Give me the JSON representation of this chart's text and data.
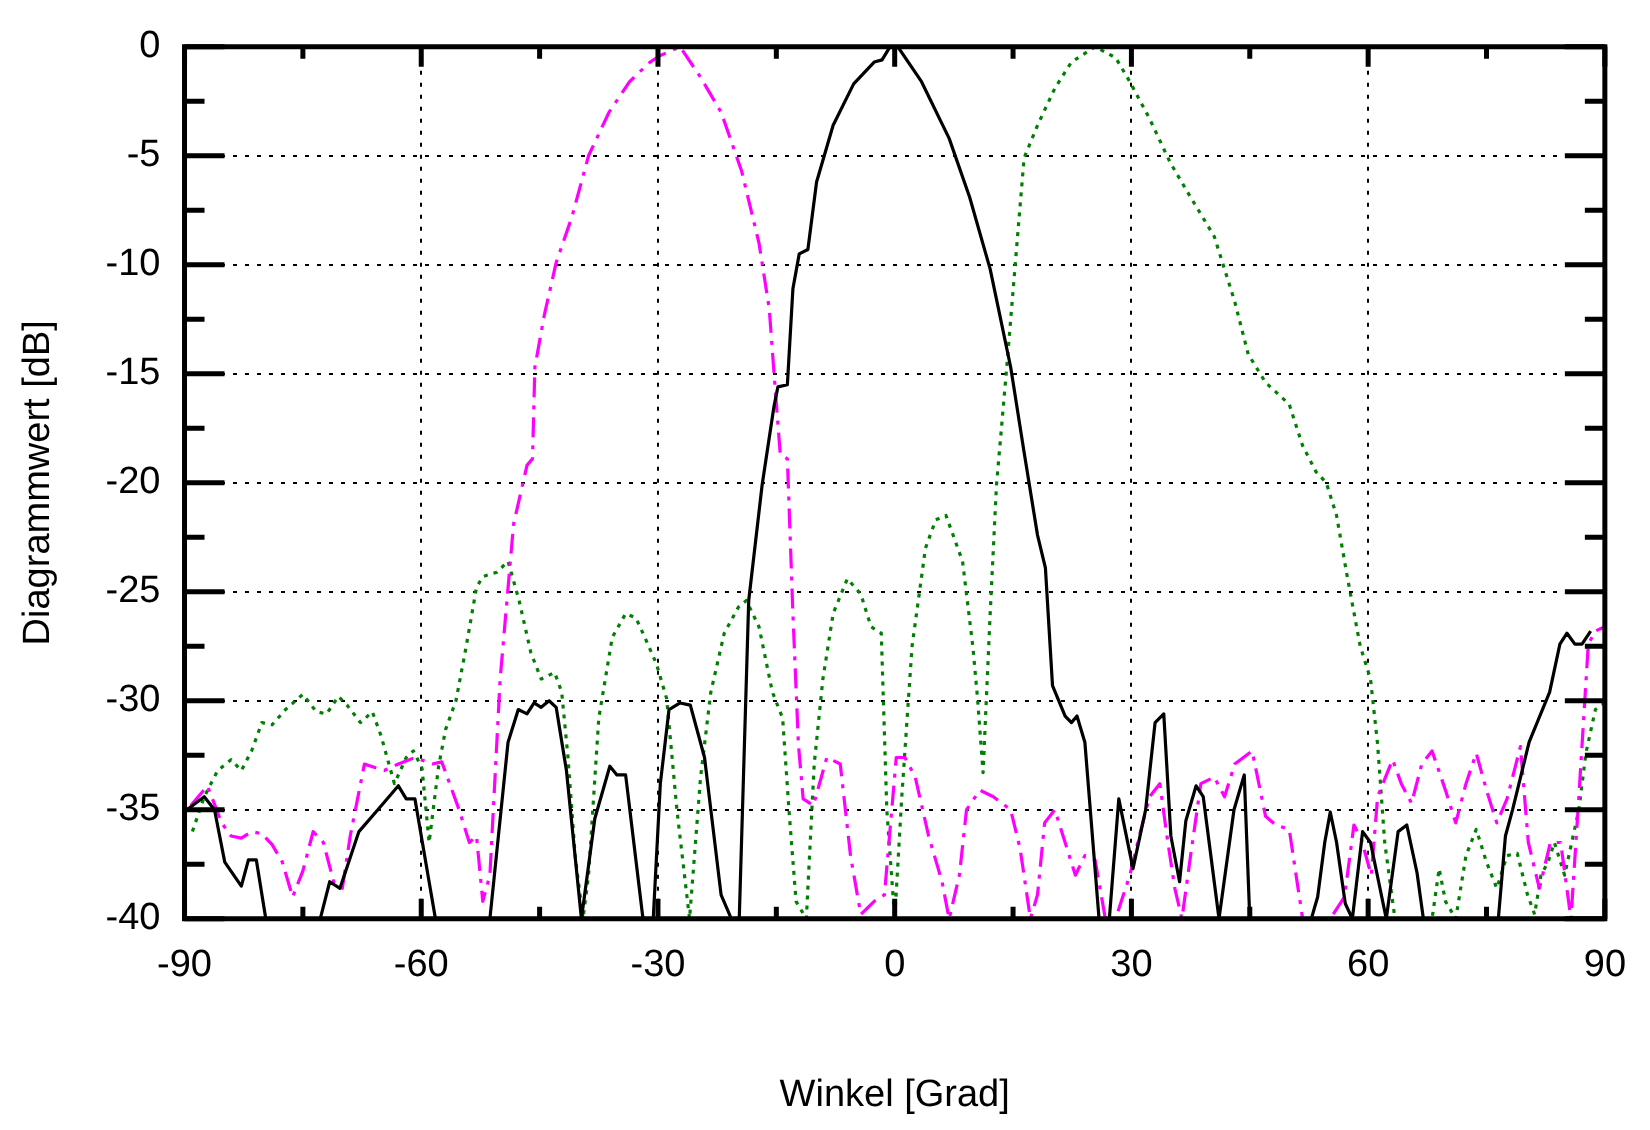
{
  "chart_data": {
    "type": "line",
    "xlabel": "Winkel [Grad]",
    "ylabel": "Diagrammwert [dB]",
    "xlim": [
      -90,
      90
    ],
    "ylim": [
      -40,
      0
    ],
    "xticks": [
      -90,
      {
        "value": -75,
        "label": null
      },
      -60,
      {
        "value": -45,
        "label": null
      },
      -30,
      {
        "value": -15,
        "label": null
      },
      0,
      {
        "value": 15,
        "label": null
      },
      30,
      {
        "value": 45,
        "label": null
      },
      60,
      {
        "value": 75,
        "label": null
      },
      90
    ],
    "yticks": [
      -40,
      {
        "value": -37.5,
        "label": null
      },
      -35,
      {
        "value": -32.5,
        "label": null
      },
      -30,
      {
        "value": -27.5,
        "label": null
      },
      -25,
      {
        "value": -22.5,
        "label": null
      },
      -20,
      {
        "value": -17.5,
        "label": null
      },
      -15,
      {
        "value": -12.5,
        "label": null
      },
      -10,
      {
        "value": -7.5,
        "label": null
      },
      -5,
      {
        "value": -2.5,
        "label": null
      },
      0
    ],
    "grid": true,
    "marker": "none",
    "series": [
      {
        "color": "#000000",
        "line_style": "solid",
        "x": [
          -89.7,
          -87.5,
          -86.2,
          -84.9,
          -82.8,
          -81.9,
          -80.9,
          -79.7,
          -72.8,
          -71.6,
          -70.3,
          -67.9,
          -65.5,
          -62.9,
          -61.9,
          -60.8,
          -58.2,
          -51.3,
          -49,
          -47.7,
          -46.6,
          -45.7,
          -44.8,
          -43.8,
          -42.9,
          -41.6,
          -39.7,
          -38,
          -36.1,
          -35.2,
          -34.1,
          -31.9,
          -30.6,
          -29.7,
          -28.6,
          -27.2,
          -25.9,
          -24.1,
          -22,
          -20.7,
          -19.7,
          -18.5,
          -16.8,
          -15.3,
          -14.8,
          -13.6,
          -12.9,
          -12.1,
          -11,
          -9.9,
          -7.8,
          -5.2,
          -2.6,
          -1.6,
          -0.6,
          0.4,
          3.4,
          6.9,
          9.5,
          12.1,
          14.7,
          16.4,
          18.1,
          19.1,
          20,
          21.6,
          22.4,
          23.1,
          24.1,
          25.9,
          27.2,
          28.4,
          30.2,
          31.8,
          33,
          34.1,
          35,
          36.1,
          36.9,
          38.2,
          39.1,
          41.1,
          43,
          44.3,
          45,
          52.8,
          53.6,
          54.5,
          55.2,
          56,
          57.1,
          58,
          59.3,
          60.3,
          62.3,
          63.8,
          64.9,
          66.2,
          67,
          76.5,
          77.4,
          78.3,
          80.4,
          83,
          84.3,
          85.2,
          86.2,
          87.1,
          88.2
        ],
        "values": [
          -35,
          -34.4,
          -35,
          -37.4,
          -38.5,
          -37.3,
          -37.3,
          -40,
          -40,
          -38.3,
          -38.6,
          -36,
          -35,
          -33.9,
          -34.5,
          -34.5,
          -40,
          -40,
          -31.9,
          -30.4,
          -30.6,
          -30.1,
          -30.3,
          -30,
          -30.3,
          -33.2,
          -40,
          -35.4,
          -33,
          -33.4,
          -33.4,
          -40,
          -40,
          -33.8,
          -30.4,
          -30.1,
          -30.2,
          -32.6,
          -38.9,
          -40,
          -40,
          -25.4,
          -20.1,
          -16.5,
          -15.6,
          -15.5,
          -11.1,
          -9.5,
          -9.3,
          -6.2,
          -3.6,
          -1.7,
          -0.7,
          -0.6,
          0,
          0,
          -1.6,
          -4.2,
          -6.9,
          -10.2,
          -14.7,
          -18.6,
          -22.4,
          -23.9,
          -29.3,
          -30.7,
          -31,
          -30.7,
          -31.9,
          -40,
          -40,
          -34.5,
          -37.7,
          -35,
          -31,
          -30.6,
          -36.2,
          -38.3,
          -35.5,
          -33.9,
          -34.4,
          -40,
          -35,
          -33.4,
          -40,
          -40,
          -39,
          -36.5,
          -35.1,
          -36.5,
          -39.3,
          -40,
          -36,
          -36.5,
          -40,
          -36,
          -35.7,
          -37.9,
          -40,
          -40,
          -36.2,
          -35,
          -31.9,
          -29.6,
          -27.4,
          -26.9,
          -27.4,
          -27.4,
          -26.8
        ]
      },
      {
        "color": "#ff00ff",
        "line_style": "dashed",
        "x": [
          -89.2,
          -87.1,
          -85.3,
          -84.1,
          -82.8,
          -81.5,
          -80.2,
          -78.9,
          -77.6,
          -76.3,
          -75,
          -73.7,
          -72.4,
          -71.1,
          -70,
          -69,
          -67.2,
          -64.7,
          -62.9,
          -60.8,
          -58.6,
          -57.4,
          -55.2,
          -53.9,
          -53,
          -52.2,
          -51.3,
          -50,
          -48.3,
          -46.6,
          -45.9,
          -45.6,
          -44.4,
          -42.9,
          -40.9,
          -38.8,
          -36.2,
          -33.6,
          -31,
          -29.7,
          -27.2,
          -24.6,
          -22,
          -19.4,
          -17.2,
          -15.9,
          -15.1,
          -14.5,
          -13.6,
          -12.9,
          -12.2,
          -11.6,
          -10.3,
          -8.6,
          -6.9,
          -5.6,
          -4.3,
          -2.6,
          -1.3,
          0.2,
          1.3,
          2.6,
          4.3,
          6,
          6.9,
          8.2,
          9.1,
          10.8,
          12.5,
          14.7,
          15.9,
          17.2,
          18.1,
          19,
          20.3,
          21.6,
          22.9,
          24.1,
          25.4,
          26.7,
          28,
          29.8,
          31,
          32.3,
          33.6,
          34.5,
          35.5,
          36.4,
          37.5,
          38.8,
          40.5,
          41.8,
          43.1,
          45.3,
          47,
          48.3,
          50,
          51.7,
          55.2,
          57,
          58.2,
          59.1,
          60.4,
          61.2,
          63.1,
          64.2,
          65.5,
          66.8,
          68.1,
          69.8,
          71.1,
          72.4,
          73.7,
          75,
          76.3,
          77.6,
          79.3,
          80.3,
          81.7,
          83.1,
          84.4,
          85.7,
          86.6,
          87.9,
          88.8,
          90
        ],
        "values": [
          -34.8,
          -33.9,
          -35.6,
          -36.2,
          -36.3,
          -36,
          -36.1,
          -36.6,
          -37.4,
          -39,
          -37.8,
          -36,
          -36.5,
          -38.3,
          -38.6,
          -36.2,
          -32.9,
          -33.2,
          -32.9,
          -32.6,
          -32.9,
          -32.8,
          -35,
          -36.5,
          -36.2,
          -39.2,
          -38,
          -29,
          -21.9,
          -19.2,
          -18.9,
          -14.7,
          -12.3,
          -9.9,
          -7.8,
          -5,
          -3,
          -1.6,
          -0.7,
          -0.4,
          0,
          -1.4,
          -3,
          -5.7,
          -9,
          -12,
          -15.9,
          -18.7,
          -18.9,
          -26,
          -32,
          -34.5,
          -34.8,
          -32.6,
          -32.9,
          -37.1,
          -39.8,
          -39.2,
          -38.9,
          -32.6,
          -32.6,
          -33.5,
          -36.2,
          -38.3,
          -40,
          -38,
          -35,
          -34.1,
          -34.4,
          -35,
          -36.8,
          -40,
          -38.9,
          -35.6,
          -35,
          -36.5,
          -38,
          -37.1,
          -37.3,
          -40,
          -40,
          -38,
          -36.2,
          -34.4,
          -33.8,
          -36.2,
          -38.6,
          -40,
          -37.1,
          -33.8,
          -33.5,
          -34.4,
          -32.9,
          -32.3,
          -35.3,
          -35.7,
          -35.9,
          -40,
          -40,
          -39,
          -35.7,
          -36.3,
          -38,
          -34.4,
          -32.7,
          -33.8,
          -34.7,
          -32.9,
          -32.3,
          -34.1,
          -35.6,
          -33.8,
          -32.4,
          -34.1,
          -35.6,
          -34.5,
          -32.1,
          -36.5,
          -38.6,
          -36.5,
          -36.5,
          -40,
          -35,
          -27.4,
          -26.8,
          -26.6
        ]
      },
      {
        "color": "#008000",
        "line_style": "dotted",
        "x": [
          -89,
          -87.5,
          -85.8,
          -84.1,
          -82.8,
          -81.5,
          -80.2,
          -78.9,
          -77.2,
          -75,
          -73.3,
          -72,
          -70.5,
          -69.4,
          -67.7,
          -66.2,
          -65.1,
          -63.4,
          -61.9,
          -61,
          -59.9,
          -59,
          -57.8,
          -56.9,
          -55.6,
          -54.3,
          -53,
          -52.2,
          -50.4,
          -49,
          -47.6,
          -46.1,
          -44.8,
          -43.1,
          -42.2,
          -41.4,
          -40.5,
          -39.5,
          -38.8,
          -37.5,
          -35.8,
          -34.1,
          -32.8,
          -31.9,
          -30.2,
          -28.9,
          -27.6,
          -26,
          -24.6,
          -23.3,
          -21.6,
          -19.8,
          -18.8,
          -17.2,
          -15.5,
          -14.2,
          -13.4,
          -12.5,
          -11.2,
          -10.2,
          -9.1,
          -7.8,
          -6,
          -4.3,
          -3,
          -1.7,
          -1,
          0,
          0.9,
          2.2,
          3.9,
          5.2,
          6.5,
          8.6,
          9.9,
          10.5,
          11.2,
          12.1,
          12.9,
          14.2,
          15.5,
          16.4,
          18.1,
          20.3,
          22.4,
          25.4,
          28,
          29.8,
          32.3,
          34.9,
          37.5,
          40.5,
          41.8,
          43.1,
          44.8,
          47,
          50,
          51.7,
          53.4,
          54.7,
          56,
          57.3,
          59,
          60.3,
          61.2,
          62.1,
          63.4,
          68.1,
          69,
          69.8,
          71.1,
          72.4,
          73.7,
          75,
          76.3,
          77.6,
          78.9,
          80.2,
          81.1,
          81.9,
          82.8,
          83.6,
          84.9,
          85.8,
          86.7,
          87.6,
          88.8,
          90
        ],
        "values": [
          -36,
          -34.4,
          -33.2,
          -32.7,
          -33.2,
          -32.3,
          -31,
          -31.1,
          -30.4,
          -29.7,
          -30.5,
          -30.6,
          -29.8,
          -30.2,
          -31,
          -30.5,
          -31.6,
          -33.8,
          -32.6,
          -32.3,
          -33.1,
          -36.5,
          -33,
          -31.3,
          -30,
          -27.5,
          -24.8,
          -24.3,
          -24.1,
          -23.6,
          -25.4,
          -27.8,
          -29,
          -28.7,
          -29.6,
          -32.6,
          -37.1,
          -40,
          -38,
          -30.8,
          -27.1,
          -26,
          -26.2,
          -26.9,
          -28.3,
          -29.9,
          -35,
          -40,
          -33.5,
          -29.6,
          -26.9,
          -25.7,
          -25.4,
          -26.6,
          -29.6,
          -30.8,
          -35,
          -39.2,
          -40,
          -32.9,
          -29,
          -26,
          -24.4,
          -25.1,
          -26.6,
          -26.9,
          -35,
          -40,
          -34.4,
          -27.5,
          -23,
          -21.7,
          -21.5,
          -23.6,
          -27.5,
          -29.9,
          -33.3,
          -26,
          -20.1,
          -14.7,
          -9,
          -5.1,
          -3.6,
          -1.9,
          -0.7,
          0,
          -0.5,
          -1.6,
          -3.3,
          -5.3,
          -6.9,
          -8.7,
          -10.2,
          -11.7,
          -14.1,
          -15.4,
          -16.4,
          -18.3,
          -19.5,
          -20,
          -21.5,
          -24.2,
          -27.5,
          -29,
          -32,
          -36.5,
          -40,
          -40,
          -37.7,
          -39.2,
          -40,
          -37.1,
          -35.9,
          -37.4,
          -38.6,
          -37.1,
          -37,
          -38.9,
          -39.8,
          -38,
          -37.4,
          -36.5,
          -38,
          -36.5,
          -35,
          -32.4,
          -30.4,
          -30.1
        ]
      }
    ]
  }
}
